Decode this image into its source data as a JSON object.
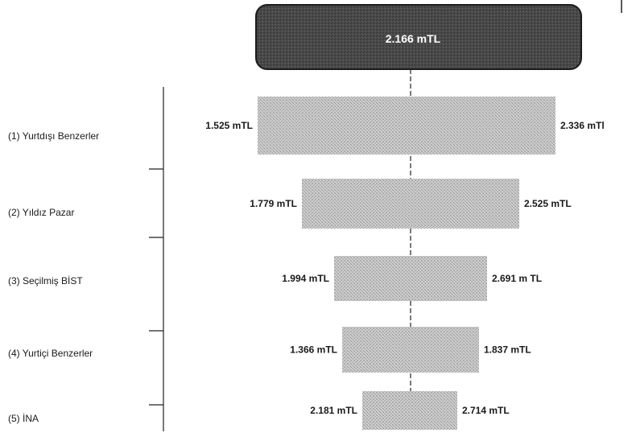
{
  "chart_data": {
    "type": "bar",
    "subtype": "football-field range chart",
    "reference": {
      "label": "2.166 mTL",
      "value": 2.166
    },
    "categories": [
      "(1) Yurtdışı Benzerler",
      "(2) Yıldız Pazar",
      "(3) Seçilmiş BİST",
      "(4) Yurtiçi Benzerler",
      "(5) İNA"
    ],
    "ranges": [
      {
        "low": 1.525,
        "high": 2.336,
        "low_label": "1.525 mTL",
        "high_label": "2.336 mTl"
      },
      {
        "low": 1.779,
        "high": 2.525,
        "low_label": "1.779 mTL",
        "high_label": "2.525 mTL"
      },
      {
        "low": 1.994,
        "high": 2.691,
        "low_label": "1.994 mTL",
        "high_label": "2.691 m TL"
      },
      {
        "low": 1.366,
        "high": 1.837,
        "low_label": "1.366 mTL",
        "high_label": "1.837 mTL"
      },
      {
        "low": 2.181,
        "high": 2.714,
        "low_label": "2.181 mTL",
        "high_label": "2.714 mTL"
      }
    ],
    "colors": {
      "bar_fill": "#c4c4c4",
      "header_fill": "#3d3d3d",
      "header_text": "#ffffff",
      "text": "#1a1a1a",
      "guide_line": "#222222"
    }
  }
}
